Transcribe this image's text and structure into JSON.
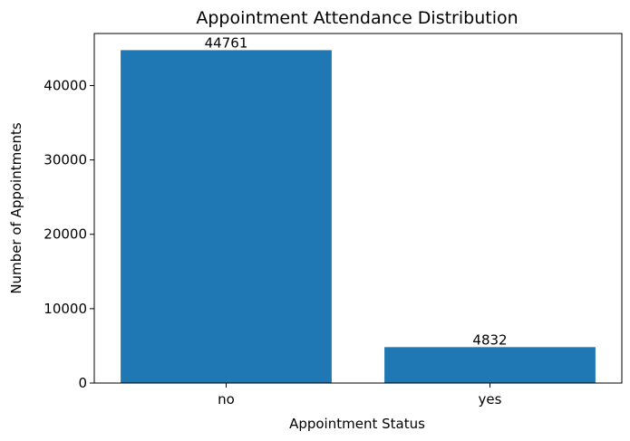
{
  "chart_data": {
    "type": "bar",
    "title": "Appointment Attendance Distribution",
    "xlabel": "Appointment Status",
    "ylabel": "Number of Appointments",
    "categories": [
      "no",
      "yes"
    ],
    "values": [
      44761,
      4832
    ],
    "data_labels": [
      "44761",
      "4832"
    ],
    "yticks": [
      0,
      10000,
      20000,
      30000,
      40000
    ],
    "ytick_labels": [
      "0",
      "10000",
      "20000",
      "30000",
      "40000"
    ],
    "ylim": [
      0,
      47000
    ],
    "bar_color": "#1f77b4",
    "grid": false,
    "legend": "none"
  }
}
